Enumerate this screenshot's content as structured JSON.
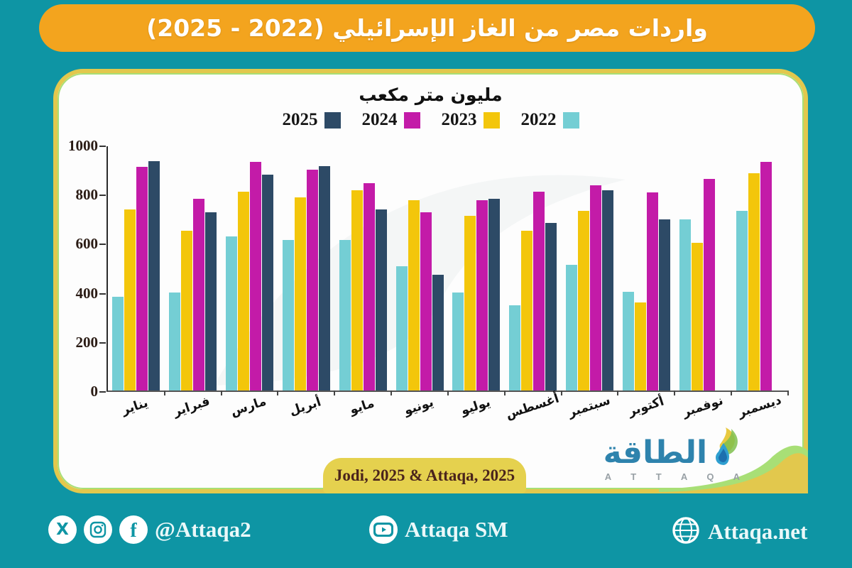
{
  "title": "واردات مصر من الغاز الإسرائيلي (2022 - 2025)",
  "source_label": "Jodi, 2025 & Attaqa, 2025",
  "logo": {
    "arabic": "الطاقة",
    "latin": "A T T A Q A"
  },
  "footer": {
    "social_handle": "@Attaqa2",
    "youtube_handle": "Attaqa SM",
    "website": "Attaqa.net"
  },
  "colors": {
    "background": "#0e95a4",
    "banner": "#f3a41e",
    "card_border": "#e2c84d",
    "pill": "#e5d14e"
  },
  "chart_data": {
    "type": "bar",
    "title": "واردات مصر من الغاز الإسرائيلي (2022 - 2025)",
    "ylabel": "مليون متر مكعب",
    "categories": [
      "يناير",
      "فبراير",
      "مارس",
      "أبريل",
      "مايو",
      "يونيو",
      "يوليو",
      "أغسطس",
      "سبتمبر",
      "أكتوبر",
      "نوفمبر",
      "ديسمبر"
    ],
    "series": [
      {
        "name": "2022",
        "color": "#74ced4",
        "values": [
          385,
          400,
          630,
          615,
          615,
          510,
          400,
          350,
          515,
          405,
          700,
          735
        ]
      },
      {
        "name": "2023",
        "color": "#f3c60b",
        "values": [
          740,
          655,
          815,
          790,
          820,
          780,
          715,
          655,
          735,
          360,
          605,
          890
        ]
      },
      {
        "name": "2024",
        "color": "#c31ba8",
        "values": [
          915,
          785,
          935,
          905,
          850,
          730,
          780,
          815,
          840,
          810,
          865,
          935
        ]
      },
      {
        "name": "2025",
        "color": "#2d4a66",
        "values": [
          940,
          730,
          885,
          920,
          740,
          475,
          785,
          685,
          820,
          700,
          null,
          null
        ]
      }
    ],
    "legend_order": [
      "2025",
      "2024",
      "2023",
      "2022"
    ],
    "ylim": [
      0,
      1000
    ],
    "yticks": [
      0,
      200,
      400,
      600,
      800,
      1000
    ],
    "grid": false,
    "legend_position": "top-center"
  }
}
